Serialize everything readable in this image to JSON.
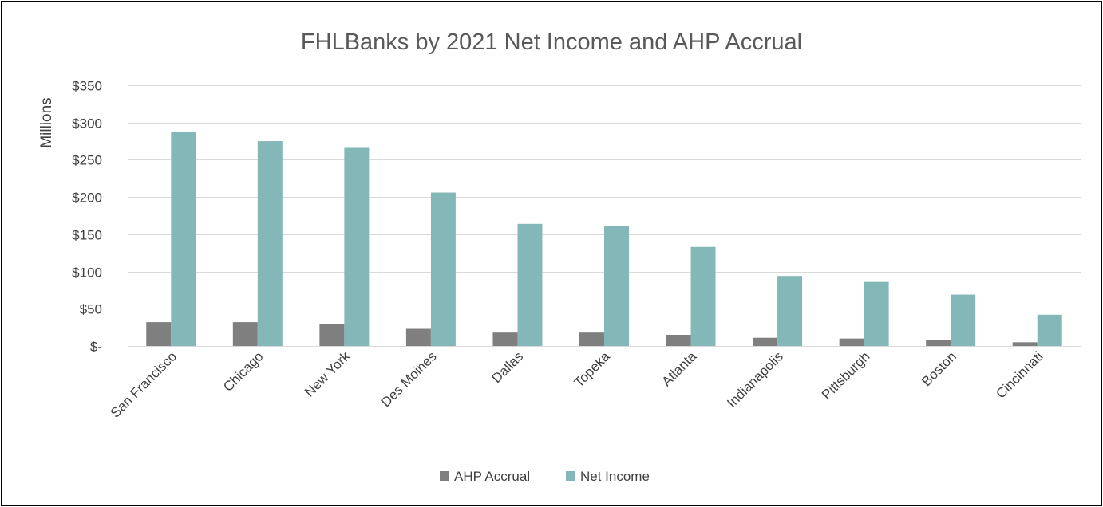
{
  "chart_data": {
    "type": "bar",
    "title": "FHLBanks by 2021 Net Income and AHP Accrual",
    "ylabel": "Millions",
    "xlabel": "",
    "ylim": [
      0,
      350
    ],
    "yticks": [
      0,
      50,
      100,
      150,
      200,
      250,
      300,
      350
    ],
    "ytick_labels": [
      "$-",
      "$50",
      "$100",
      "$150",
      "$200",
      "$250",
      "$300",
      "$350"
    ],
    "categories": [
      "San Francisco",
      "Chicago",
      "New York",
      "Des Moines",
      "Dallas",
      "Topeka",
      "Atlanta",
      "Indianapolis",
      "Pittsburgh",
      "Boston",
      "Cincinnati"
    ],
    "series": [
      {
        "name": "AHP Accrual",
        "color": "#7f7f7f",
        "values": [
          32,
          32,
          29,
          23,
          18,
          18,
          15,
          11,
          10,
          8,
          5
        ]
      },
      {
        "name": "Net Income",
        "color": "#84b8b8",
        "values": [
          287,
          275,
          266,
          206,
          164,
          161,
          133,
          94,
          86,
          69,
          42
        ]
      }
    ],
    "grid": true,
    "legend_position": "bottom"
  }
}
